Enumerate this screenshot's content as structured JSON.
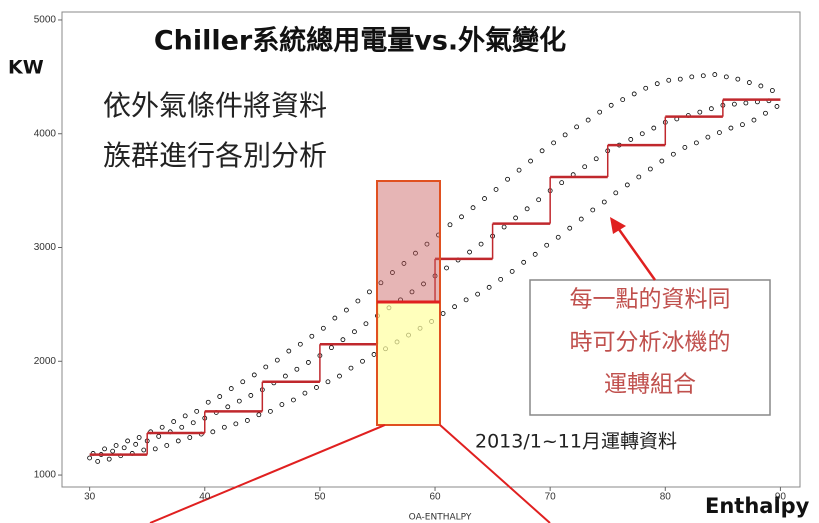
{
  "chart_data": {
    "type": "scatter",
    "title": "Chiller系統總用電量vs.外氣變化",
    "ylabel": "KW",
    "xlabel": "OA-ENTHALPY",
    "xlabel_large": "Enthalpy",
    "annotations": {
      "left": [
        "依外氣條件將資料",
        "族群進行各別分析"
      ],
      "box": [
        "每一點的資料同",
        "時可分析冰機的",
        "運轉組合"
      ],
      "note": "2013/1~11月運轉資料"
    },
    "xlim": [
      27.6,
      91.7
    ],
    "ylim": [
      895,
      5070
    ],
    "xticks": [
      30,
      40,
      50,
      60,
      70,
      80,
      90
    ],
    "yticks": [
      1000,
      2000,
      3000,
      4000,
      5000
    ],
    "point_color": "#000000",
    "points": {
      "x": [
        30.3,
        30.7,
        31.3,
        31.7,
        32.3,
        32.7,
        33.3,
        33.7,
        34.3,
        34.7,
        35.3,
        35.7,
        36.3,
        36.7,
        37.3,
        37.7,
        38.3,
        38.7,
        39.3,
        39.7,
        40.3,
        40.7,
        41.3,
        41.7,
        42.3,
        42.7,
        43.3,
        43.7,
        44.3,
        44.7,
        45.3,
        45.7,
        46.3,
        46.7,
        47.3,
        47.7,
        48.3,
        48.7,
        49.3,
        49.7,
        50.3,
        50.7,
        51.3,
        51.7,
        52.3,
        52.7,
        53.3,
        53.7,
        54.3,
        54.7,
        55.3,
        55.7,
        56.3,
        56.7,
        57.3,
        57.7,
        58.3,
        58.7,
        59.3,
        59.7,
        60.3,
        60.7,
        61.3,
        61.7,
        62.3,
        62.7,
        63.3,
        63.7,
        64.3,
        64.7,
        65.3,
        65.7,
        66.3,
        66.7,
        67.3,
        67.7,
        68.3,
        68.7,
        69.3,
        69.7,
        70.3,
        70.7,
        71.3,
        71.7,
        72.3,
        72.7,
        73.3,
        73.7,
        74.3,
        74.7,
        75.3,
        75.7,
        76.3,
        76.7,
        77.3,
        77.7,
        78.3,
        78.7,
        79.3,
        79.7,
        80.3,
        80.7,
        81.3,
        81.7,
        82.3,
        82.7,
        83.3,
        83.7,
        84.3,
        84.7,
        85.3,
        85.7,
        86.3,
        86.7,
        87.3,
        87.7,
        88.3,
        88.7,
        89.3,
        89.7,
        30,
        31,
        32,
        33,
        34,
        35,
        36,
        37,
        38,
        39,
        40,
        41,
        42,
        43,
        44,
        45,
        46,
        47,
        48,
        49,
        50,
        51,
        52,
        53,
        54,
        55,
        56,
        57,
        58,
        59,
        60,
        61,
        62,
        63,
        64,
        65,
        66,
        67,
        68,
        69,
        70,
        71,
        72,
        73,
        74,
        75,
        76,
        77,
        78,
        79,
        80,
        81,
        82,
        83,
        84,
        85,
        86,
        87,
        88,
        89
      ],
      "y": [
        1190,
        1120,
        1230,
        1140,
        1260,
        1170,
        1300,
        1190,
        1330,
        1220,
        1380,
        1230,
        1420,
        1260,
        1470,
        1300,
        1520,
        1330,
        1560,
        1360,
        1640,
        1380,
        1690,
        1420,
        1760,
        1450,
        1820,
        1480,
        1880,
        1530,
        1950,
        1560,
        2010,
        1620,
        2090,
        1660,
        2150,
        1720,
        2220,
        1770,
        2290,
        1820,
        2380,
        1870,
        2450,
        1940,
        2530,
        2000,
        2610,
        2060,
        2690,
        2110,
        2780,
        2170,
        2860,
        2230,
        2950,
        2290,
        3030,
        2350,
        3110,
        2420,
        3200,
        2480,
        3270,
        2540,
        3350,
        2590,
        3430,
        2650,
        3510,
        2720,
        3600,
        2790,
        3680,
        2870,
        3760,
        2940,
        3850,
        3020,
        3920,
        3090,
        3990,
        3170,
        4060,
        3250,
        4120,
        3330,
        4190,
        3400,
        4250,
        3480,
        4300,
        3550,
        4350,
        3620,
        4400,
        3690,
        4440,
        3760,
        4470,
        3820,
        4480,
        3880,
        4500,
        3920,
        4510,
        3970,
        4520,
        4010,
        4500,
        4050,
        4480,
        4080,
        4450,
        4120,
        4420,
        4180,
        4380,
        4240,
        1150,
        1180,
        1210,
        1240,
        1270,
        1300,
        1340,
        1380,
        1420,
        1460,
        1500,
        1550,
        1600,
        1650,
        1700,
        1750,
        1810,
        1870,
        1930,
        1990,
        2050,
        2120,
        2190,
        2260,
        2330,
        2400,
        2470,
        2540,
        2610,
        2680,
        2750,
        2820,
        2890,
        2960,
        3030,
        3100,
        3180,
        3260,
        3340,
        3420,
        3500,
        3570,
        3640,
        3710,
        3780,
        3850,
        3900,
        3950,
        4000,
        4050,
        4100,
        4130,
        4160,
        4190,
        4220,
        4250,
        4260,
        4270,
        4280,
        4290
      ]
    },
    "step_color": "#c0282d",
    "steps": {
      "edges": [
        30,
        35,
        40,
        45,
        50,
        55,
        60,
        65,
        70,
        75,
        80,
        85,
        90
      ],
      "values": [
        1180,
        1370,
        1560,
        1820,
        2150,
        2520,
        2900,
        3210,
        3620,
        3900,
        4150,
        4300
      ]
    }
  }
}
